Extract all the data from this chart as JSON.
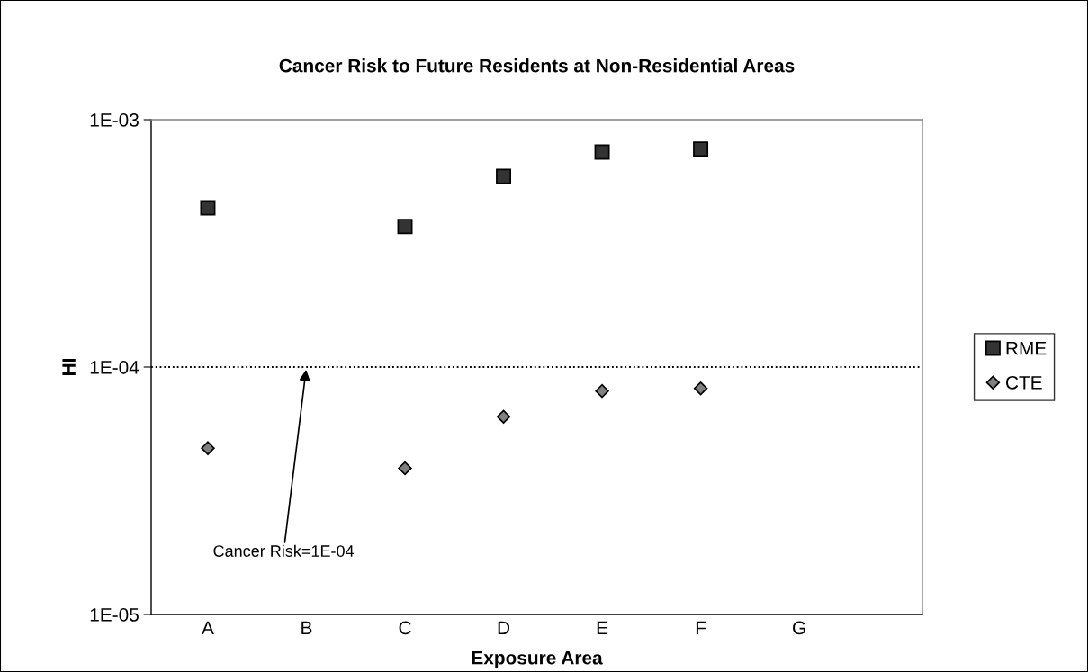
{
  "chart_data": {
    "type": "scatter",
    "title": "Cancer Risk to Future Residents at Non-Residential Areas",
    "xlabel": "Exposure Area",
    "ylabel": "HI",
    "categories": [
      "A",
      "B",
      "C",
      "D",
      "E",
      "F",
      "G"
    ],
    "series": [
      {
        "name": "RME",
        "color": "#333333",
        "marker": "square",
        "values": [
          0.00044,
          null,
          0.00037,
          0.00059,
          0.00074,
          0.00076,
          null
        ]
      },
      {
        "name": "CTE",
        "color": "#808080",
        "marker": "diamond",
        "values": [
          4.7e-05,
          null,
          3.9e-05,
          6.3e-05,
          8e-05,
          8.2e-05,
          null
        ]
      }
    ],
    "log": "y",
    "ylim": [
      1e-05,
      0.001
    ],
    "yticks": [
      {
        "value": 1e-05,
        "label": "1E-05"
      },
      {
        "value": 0.0001,
        "label": "1E-04"
      },
      {
        "value": 0.001,
        "label": "1E-03"
      }
    ],
    "ref_lines": [
      {
        "axis": "y",
        "value": 0.0001,
        "color": "#000000",
        "line_style": "dotted"
      }
    ],
    "annotations": [
      {
        "text": "Cancer Risk=1E-04",
        "x": "B",
        "y": 0.0001
      }
    ],
    "grid": false,
    "legend": "right"
  }
}
